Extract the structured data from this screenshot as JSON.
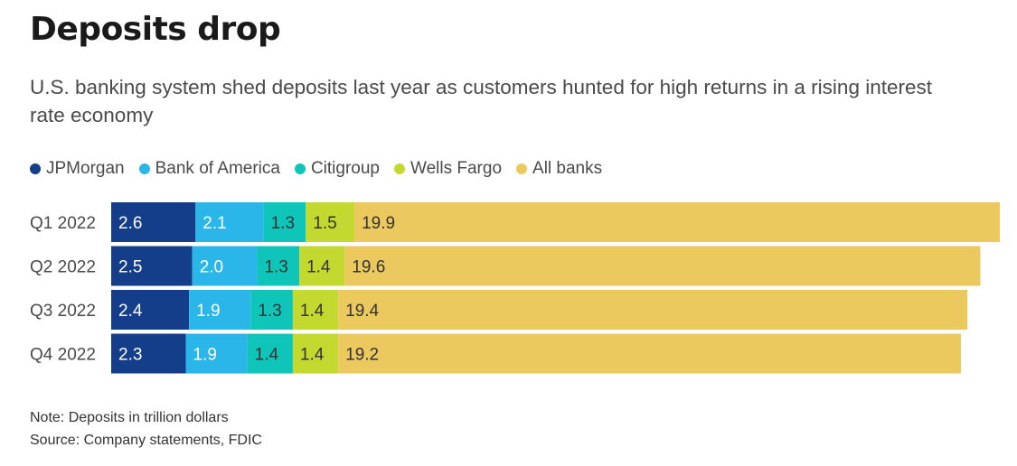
{
  "header": {
    "title": "Deposits drop",
    "subtitle": "U.S. banking system shed deposits last year as customers hunted for high returns in a rising interest rate economy"
  },
  "footer": {
    "note": "Note: Deposits in trillion dollars",
    "source": "Source: Company statements, FDIC"
  },
  "chart_data": {
    "type": "bar",
    "orientation": "horizontal",
    "stacked": true,
    "categories": [
      "Q1 2022",
      "Q2 2022",
      "Q3 2022",
      "Q4 2022"
    ],
    "series": [
      {
        "name": "JPMorgan",
        "color": "#143e8a",
        "label_color": "#ffffff",
        "values": [
          2.6,
          2.5,
          2.4,
          2.3
        ]
      },
      {
        "name": "Bank of America",
        "color": "#2bb6ea",
        "label_color": "#ffffff",
        "values": [
          2.1,
          2.0,
          1.9,
          1.9
        ]
      },
      {
        "name": "Citigroup",
        "color": "#0fc4b8",
        "label_color": "#333333",
        "values": [
          1.3,
          1.3,
          1.3,
          1.4
        ]
      },
      {
        "name": "Wells Fargo",
        "color": "#c4d930",
        "label_color": "#333333",
        "values": [
          1.5,
          1.4,
          1.4,
          1.4
        ]
      },
      {
        "name": "All banks",
        "color": "#ebc95e",
        "label_color": "#333333",
        "values": [
          19.9,
          19.6,
          19.4,
          19.2
        ]
      }
    ],
    "xlim": [
      0,
      27.4
    ],
    "legend": "top-left",
    "grid": false
  }
}
